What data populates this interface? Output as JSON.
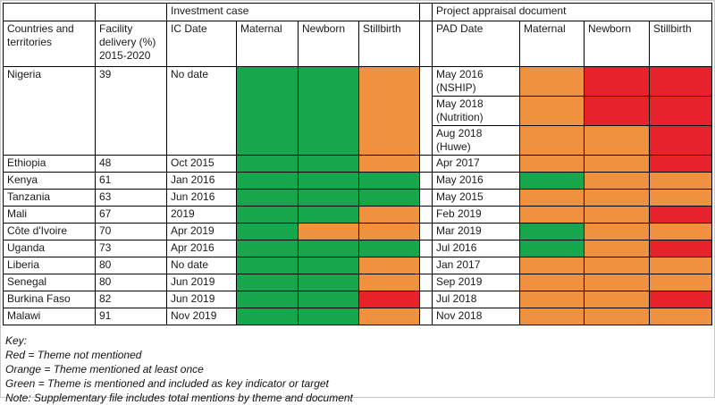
{
  "colors": {
    "g": "#17a64b",
    "o": "#f0913f",
    "r": "#e8222a"
  },
  "table": {
    "groups": {
      "investment_case": "Investment case",
      "project_appraisal": "Project appraisal document"
    },
    "headers": {
      "countries": "Countries and territories",
      "facility": "Facility delivery (%) 2015-2020",
      "ic_date": "IC Date",
      "ic_maternal": "Maternal",
      "ic_newborn": "Newborn",
      "ic_stillbirth": "Stillbirth",
      "pad_date": "PAD Date",
      "pad_maternal": "Maternal",
      "pad_newborn": "Newborn",
      "pad_stillbirth": "Stillbirth"
    },
    "rows": [
      {
        "country": "Nigeria",
        "facility": "39",
        "ic_date": "No date",
        "ic": [
          "g",
          "g",
          "o"
        ],
        "pad": [
          {
            "date": "May 2016 (NSHIP)",
            "colors": [
              "o",
              "r",
              "r"
            ]
          },
          {
            "date": "May 2018 (Nutrition)",
            "colors": [
              "o",
              "r",
              "r"
            ]
          },
          {
            "date": "Aug 2018 (Huwe)",
            "colors": [
              "o",
              "o",
              "r"
            ]
          }
        ]
      },
      {
        "country": "Ethiopia",
        "facility": "48",
        "ic_date": "Oct 2015",
        "ic": [
          "g",
          "g",
          "o"
        ],
        "pad": [
          {
            "date": "Apr 2017",
            "colors": [
              "o",
              "o",
              "r"
            ]
          }
        ]
      },
      {
        "country": "Kenya",
        "facility": "61",
        "ic_date": "Jan 2016",
        "ic": [
          "g",
          "g",
          "g"
        ],
        "pad": [
          {
            "date": "May 2016",
            "colors": [
              "g",
              "o",
              "o"
            ]
          }
        ]
      },
      {
        "country": "Tanzania",
        "facility": "63",
        "ic_date": "Jun 2016",
        "ic": [
          "g",
          "g",
          "g"
        ],
        "pad": [
          {
            "date": "May 2015",
            "colors": [
              "o",
              "o",
              "o"
            ]
          }
        ]
      },
      {
        "country": "Mali",
        "facility": "67",
        "ic_date": "2019",
        "ic": [
          "g",
          "g",
          "o"
        ],
        "pad": [
          {
            "date": "Feb 2019",
            "colors": [
              "o",
              "o",
              "r"
            ]
          }
        ]
      },
      {
        "country": "Côte d'Ivoire",
        "facility": "70",
        "ic_date": "Apr 2019",
        "ic": [
          "g",
          "o",
          "o"
        ],
        "pad": [
          {
            "date": "Mar 2019",
            "colors": [
              "g",
              "o",
              "o"
            ]
          }
        ]
      },
      {
        "country": "Uganda",
        "facility": "73",
        "ic_date": "Apr 2016",
        "ic": [
          "g",
          "g",
          "g"
        ],
        "pad": [
          {
            "date": "Jul 2016",
            "colors": [
              "g",
              "o",
              "r"
            ]
          }
        ]
      },
      {
        "country": "Liberia",
        "facility": "80",
        "ic_date": "No date",
        "ic": [
          "g",
          "g",
          "o"
        ],
        "pad": [
          {
            "date": "Jan 2017",
            "colors": [
              "o",
              "o",
              "o"
            ]
          }
        ]
      },
      {
        "country": "Senegal",
        "facility": "80",
        "ic_date": "Jun 2019",
        "ic": [
          "g",
          "g",
          "o"
        ],
        "pad": [
          {
            "date": "Sep 2019",
            "colors": [
              "o",
              "o",
              "o"
            ]
          }
        ]
      },
      {
        "country": "Burkina Faso",
        "facility": "82",
        "ic_date": "Jun 2019",
        "ic": [
          "g",
          "g",
          "r"
        ],
        "pad": [
          {
            "date": "Jul 2018",
            "colors": [
              "o",
              "o",
              "r"
            ]
          }
        ]
      },
      {
        "country": "Malawi",
        "facility": "91",
        "ic_date": "Nov 2019",
        "ic": [
          "g",
          "g",
          "o"
        ],
        "pad": [
          {
            "date": "Nov 2018",
            "colors": [
              "o",
              "o",
              "o"
            ]
          }
        ]
      }
    ]
  },
  "key": {
    "title": "Key:",
    "lines": [
      "Red = Theme not mentioned",
      "Orange = Theme mentioned at least once",
      "Green = Theme is mentioned and included as key indicator or target",
      "Note: Supplementary file includes total mentions by theme and document"
    ]
  }
}
